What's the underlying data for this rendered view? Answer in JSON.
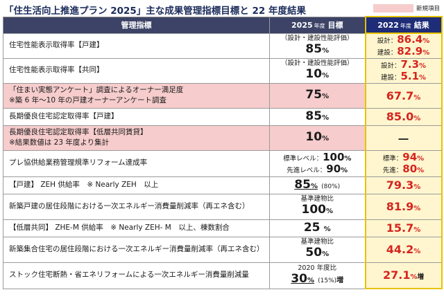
{
  "header": {
    "title": "「住生活向上推進プラン 2025」主な成果管理指標目標と 22 年度結果",
    "legend_label": "新規項目",
    "legend_color": "#f6cccc"
  },
  "table": {
    "col_metric": "管理指標",
    "col_target_year": "2025",
    "col_target_nendo": "年度",
    "col_target_label": "目標",
    "col_result_year": "2022",
    "col_result_nendo": "年度",
    "col_result_label": "結果"
  },
  "rows": [
    {
      "metric": "住宅性能表示取得率【戸建】",
      "target_note": "（設計・建設性能評価）",
      "target_value": "85",
      "target_unit": "%",
      "result_a_label": "設計：",
      "result_a_value": "86.4",
      "result_a_unit": "%",
      "result_b_label": "建設：",
      "result_b_value": "82.9",
      "result_b_unit": "%"
    },
    {
      "metric": "住宅性能表示取得率【共同】",
      "target_note": "（設計・建設性能評価）",
      "target_value": "10",
      "target_unit": "%",
      "result_a_label": "設計：",
      "result_a_value": "7.3",
      "result_a_unit": "%",
      "result_b_label": "建設：",
      "result_b_value": "5.1",
      "result_b_unit": "%"
    },
    {
      "metric": "「住まい実態アンケート」調査によるオーナー満足度",
      "metric_note": "※築 6 年～10 年の戸建オーナーアンケート調査",
      "target_value": "75",
      "target_unit": "%",
      "result_value": "67.7",
      "result_unit": "%"
    },
    {
      "metric": "長期優良住宅認定取得率【戸建】",
      "target_value": "85",
      "target_unit": "%",
      "result_value": "85.0",
      "result_unit": "%"
    },
    {
      "metric": "長期優良住宅認定取得率【低層共同賃貸】",
      "metric_note": "※結果数値は 23 年度より集計",
      "target_value": "10",
      "target_unit": "%",
      "result_value": "―"
    },
    {
      "metric": "プレ協供給業務管理規準リフォーム達成率",
      "target_a_label": "標準レベル：",
      "target_a_value": "100",
      "target_a_unit": "%",
      "target_b_label": "先進レベル：",
      "target_b_value": "90",
      "target_b_unit": "%",
      "result_a_label": "標準：",
      "result_a_value": "94",
      "result_a_unit": "%",
      "result_b_label": "先進：",
      "result_b_value": "80",
      "result_b_unit": "%"
    },
    {
      "metric": "【戸建】 ZEH 供給率　※ Nearly ZEH　以上",
      "target_value": "85",
      "target_unit": "%",
      "target_extra": "(80%)",
      "result_value": "79.3",
      "result_unit": "%"
    },
    {
      "metric": "新築戸建の居住段階における一次エネルギー消費量削減率（再エネ含む）",
      "target_note": "基準建物比",
      "target_value": "100",
      "target_unit": "%",
      "result_value": "81.9",
      "result_unit": "%"
    },
    {
      "metric": "【低層共同】 ZHE-M 供給率　※ Nearly ZEH- M　以上、棟数割合",
      "target_value": "25",
      "target_unit": "%",
      "result_value": "15.7",
      "result_unit": "%"
    },
    {
      "metric": "新築集合住宅の居住段階における一次エネルギー消費量削減率（再エネ含む）",
      "target_note": "基準建物比",
      "target_value": "50",
      "target_unit": "%",
      "result_value": "44.2",
      "result_unit": "%"
    },
    {
      "metric": "ストック住宅断熱・省エネリフォームによる一次エネルギー消費量削減量",
      "target_note": "2020 年度比",
      "target_value": "30",
      "target_unit": "%",
      "target_extra": "(15%)",
      "target_suffix": "増",
      "result_value": "27.1",
      "result_unit": "%",
      "result_suffix": "増"
    }
  ]
}
